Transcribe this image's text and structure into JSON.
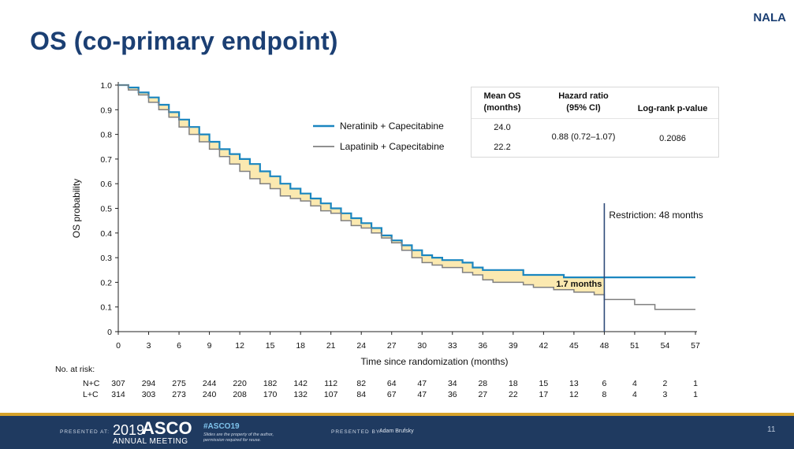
{
  "slide": {
    "tag": "NALA",
    "title": "OS (co-primary endpoint)",
    "page_number": "11"
  },
  "stats_table": {
    "col1_header_line1": "Mean OS",
    "col1_header_line2": "(months)",
    "col2_header_line1": "Hazard ratio",
    "col2_header_line2": "(95% CI)",
    "col3_header": "Log-rank p-value",
    "mean_os_nc": "24.0",
    "mean_os_lc": "22.2",
    "hazard_ratio": "0.88 (0.72–1.07)",
    "p_value": "0.2086"
  },
  "footer": {
    "presented_at": "PRESENTED AT:",
    "meeting_year": "2019",
    "meeting_brand": "ASCO",
    "meeting_sub": "ANNUAL MEETING",
    "hashtag": "#ASCO19",
    "disclaimer_line1": "Slides are the property of the author,",
    "disclaimer_line2": "permission required for reuse.",
    "presented_by": "PRESENTED BY:",
    "presenter": "Adam Brufsky"
  },
  "colors": {
    "neratinib": "#1a86c0",
    "lapatinib": "#808080",
    "fill": "#fbe9b0",
    "restriction_line": "#2e4a78",
    "title": "#1b3f73"
  },
  "chart_data": {
    "type": "line",
    "title": "",
    "xlabel": "Time since randomization (months)",
    "ylabel": "OS probability",
    "xlim": [
      0,
      57
    ],
    "ylim": [
      0,
      1.0
    ],
    "x_ticks": [
      0,
      3,
      6,
      9,
      12,
      15,
      18,
      21,
      24,
      27,
      30,
      33,
      36,
      39,
      42,
      45,
      48,
      51,
      54,
      57
    ],
    "y_ticks": [
      0,
      0.1,
      0.2,
      0.3,
      0.4,
      0.5,
      0.6,
      0.7,
      0.8,
      0.9,
      1.0
    ],
    "restriction_x": 48,
    "restriction_label": "Restriction: 48 months",
    "difference_label": "1.7 months",
    "series": [
      {
        "name": "Neratinib + Capecitabine",
        "color": "#1a86c0",
        "x": [
          0,
          1,
          2,
          3,
          4,
          5,
          6,
          7,
          8,
          9,
          10,
          11,
          12,
          13,
          14,
          15,
          16,
          17,
          18,
          19,
          20,
          21,
          22,
          23,
          24,
          25,
          26,
          27,
          28,
          29,
          30,
          31,
          32,
          33,
          34,
          35,
          36,
          37,
          38,
          39,
          40,
          41,
          42,
          43,
          44,
          45,
          46,
          47,
          48,
          50,
          52,
          54,
          56,
          57
        ],
        "y": [
          1.0,
          0.99,
          0.97,
          0.95,
          0.92,
          0.89,
          0.86,
          0.83,
          0.8,
          0.77,
          0.74,
          0.72,
          0.7,
          0.68,
          0.65,
          0.63,
          0.6,
          0.58,
          0.56,
          0.54,
          0.52,
          0.5,
          0.48,
          0.46,
          0.44,
          0.42,
          0.39,
          0.37,
          0.35,
          0.33,
          0.31,
          0.3,
          0.29,
          0.29,
          0.28,
          0.26,
          0.25,
          0.25,
          0.25,
          0.25,
          0.23,
          0.23,
          0.23,
          0.23,
          0.22,
          0.22,
          0.22,
          0.22,
          0.22,
          0.22,
          0.22,
          0.22,
          0.22,
          0.22
        ]
      },
      {
        "name": "Lapatinib + Capecitabine",
        "color": "#808080",
        "x": [
          0,
          1,
          2,
          3,
          4,
          5,
          6,
          7,
          8,
          9,
          10,
          11,
          12,
          13,
          14,
          15,
          16,
          17,
          18,
          19,
          20,
          21,
          22,
          23,
          24,
          25,
          26,
          27,
          28,
          29,
          30,
          31,
          32,
          33,
          34,
          35,
          36,
          37,
          38,
          39,
          40,
          41,
          42,
          43,
          44,
          45,
          46,
          47,
          48,
          49,
          50,
          51,
          52,
          53,
          54,
          55,
          56,
          57
        ],
        "y": [
          1.0,
          0.98,
          0.96,
          0.93,
          0.9,
          0.87,
          0.83,
          0.8,
          0.77,
          0.74,
          0.71,
          0.68,
          0.65,
          0.62,
          0.6,
          0.58,
          0.55,
          0.54,
          0.53,
          0.51,
          0.49,
          0.48,
          0.45,
          0.43,
          0.42,
          0.4,
          0.38,
          0.36,
          0.33,
          0.3,
          0.28,
          0.27,
          0.26,
          0.26,
          0.24,
          0.23,
          0.21,
          0.2,
          0.2,
          0.2,
          0.19,
          0.18,
          0.18,
          0.17,
          0.17,
          0.16,
          0.16,
          0.15,
          0.13,
          0.13,
          0.13,
          0.11,
          0.11,
          0.09,
          0.09,
          0.09,
          0.09,
          0.09
        ]
      }
    ],
    "risk_table": {
      "title": "No. at risk:",
      "rows": [
        {
          "label": "N+C",
          "values": [
            "307",
            "294",
            "275",
            "244",
            "220",
            "182",
            "142",
            "112",
            "82",
            "64",
            "47",
            "34",
            "28",
            "18",
            "15",
            "13",
            "6",
            "4",
            "2",
            "1"
          ]
        },
        {
          "label": "L+C",
          "values": [
            "314",
            "303",
            "273",
            "240",
            "208",
            "170",
            "132",
            "107",
            "84",
            "67",
            "47",
            "36",
            "27",
            "22",
            "17",
            "12",
            "8",
            "4",
            "3",
            "1"
          ]
        }
      ]
    }
  }
}
